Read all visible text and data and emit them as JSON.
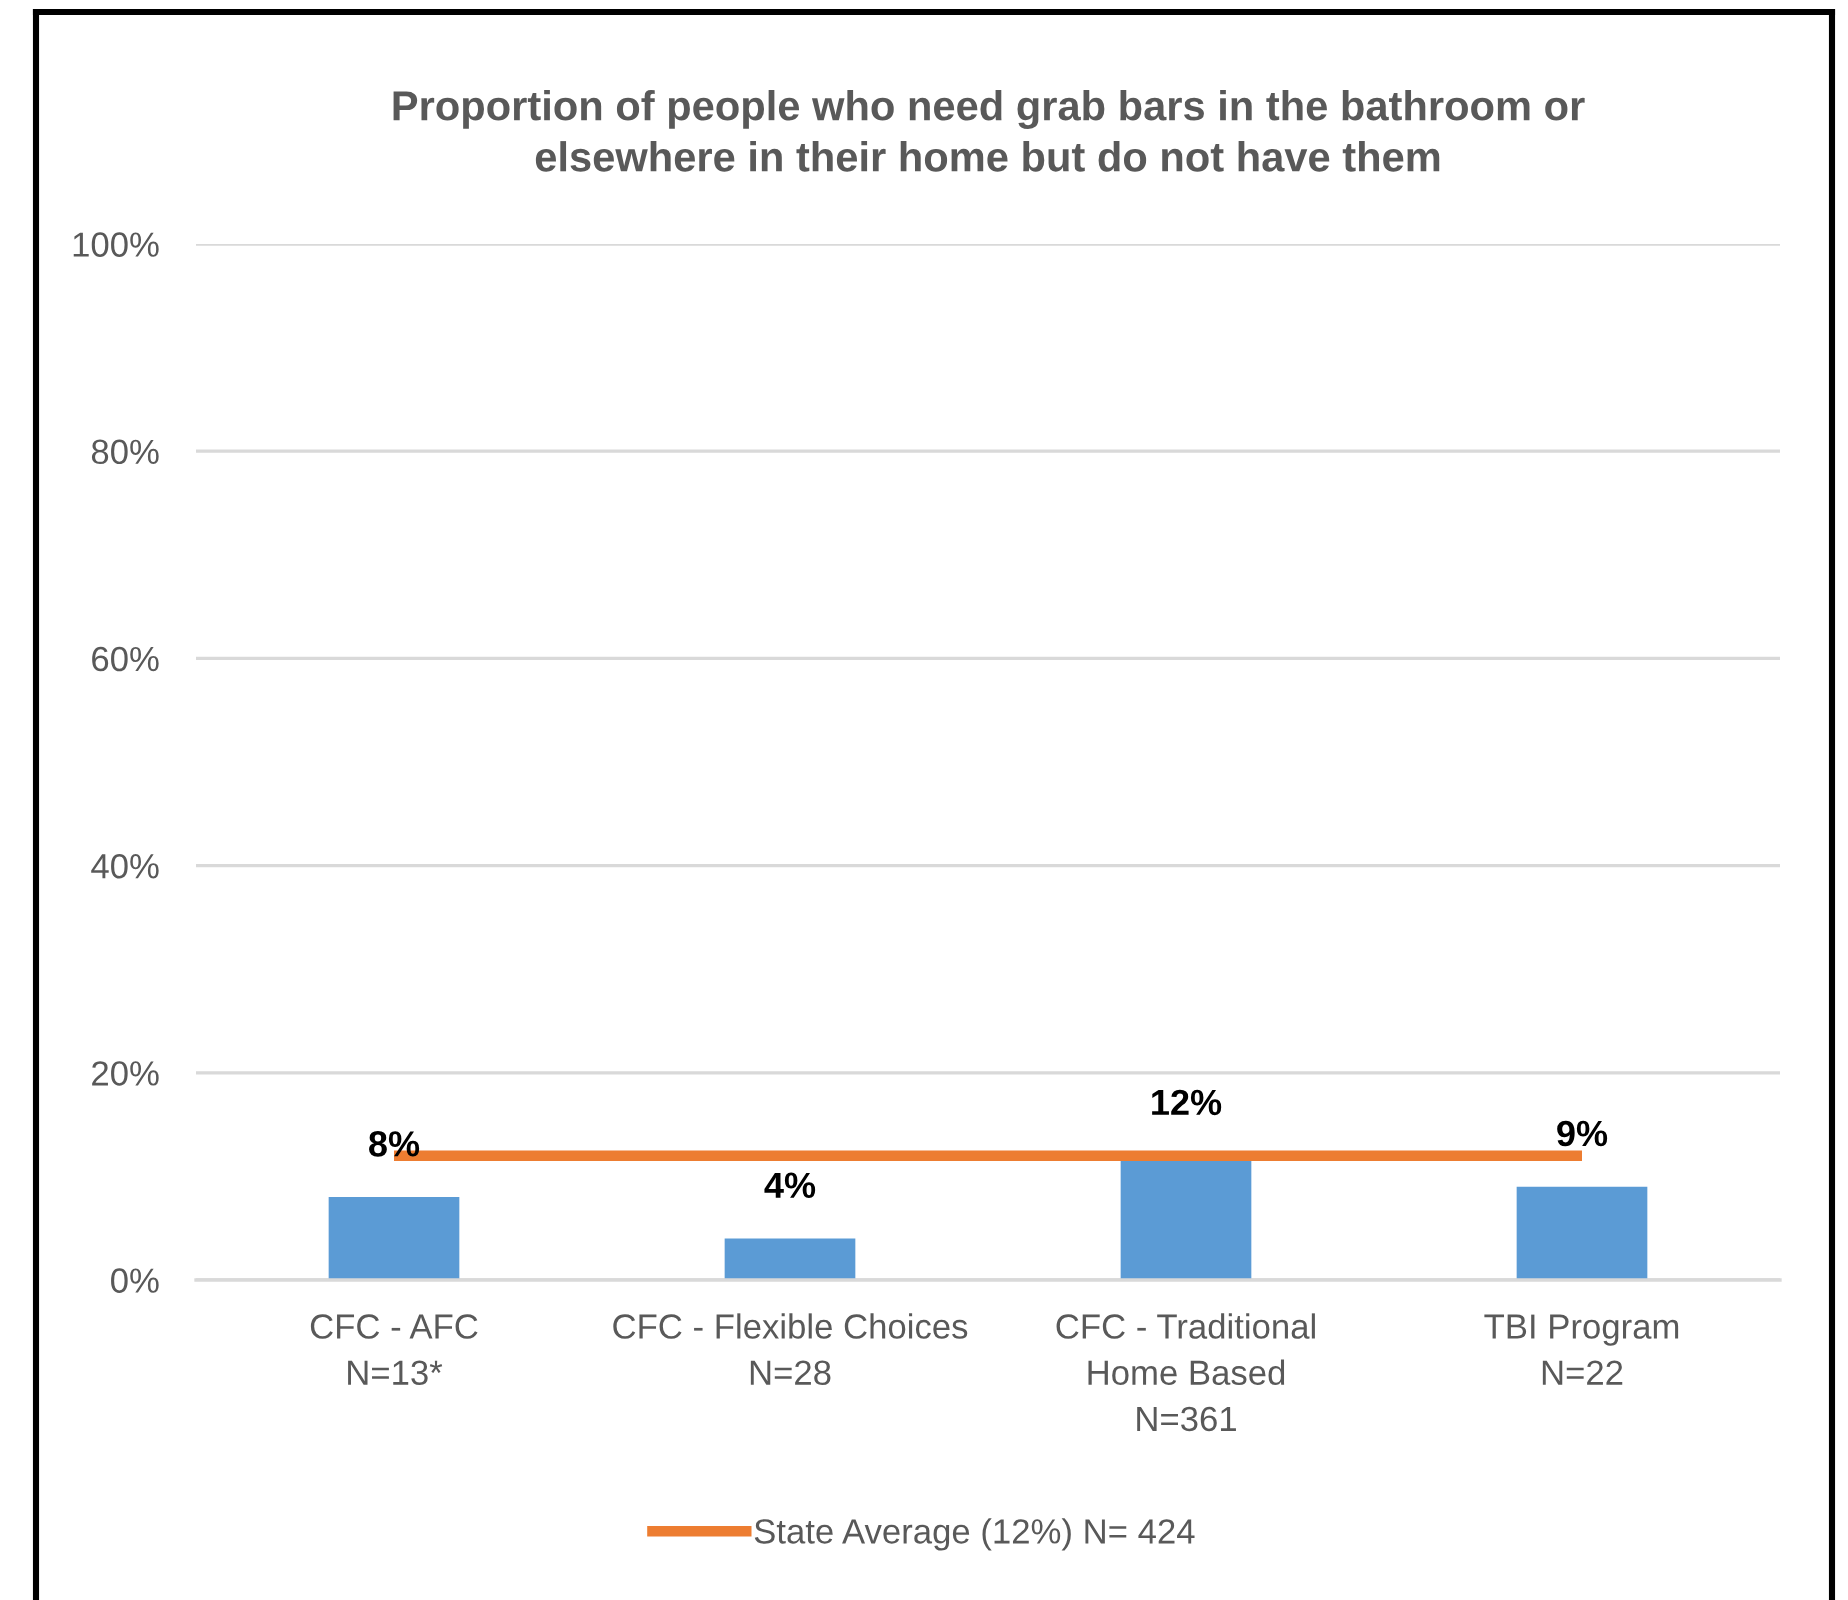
{
  "chart_data": {
    "type": "bar",
    "title": "Proportion of people who need grab bars in the bathroom or\nelsewhere in their home but do not have them",
    "categories": [
      "CFC - AFC\nN=13*",
      "CFC - Flexible Choices\nN=28",
      "CFC - Traditional\nHome Based\nN=361",
      "TBI Program\nN=22"
    ],
    "series": [
      {
        "color": "#5b9bd5",
        "values": [
          8,
          4,
          12,
          9
        ],
        "value_labels": [
          "8%",
          "4%",
          "12%",
          "9%"
        ]
      },
      {
        "type": "line",
        "name": "State Average (12%) N= 424",
        "color": "#ed7d31",
        "values": [
          12,
          12,
          12,
          12
        ]
      }
    ],
    "ylim": [
      0,
      100
    ],
    "yticks": [
      {
        "value": 0,
        "label": "0%"
      },
      {
        "value": 20,
        "label": "20%"
      },
      {
        "value": 40,
        "label": "40%"
      },
      {
        "value": 60,
        "label": "60%"
      },
      {
        "value": 80,
        "label": "80%"
      },
      {
        "value": 100,
        "label": "100%"
      }
    ],
    "grid": "y",
    "legend": "bottom"
  }
}
